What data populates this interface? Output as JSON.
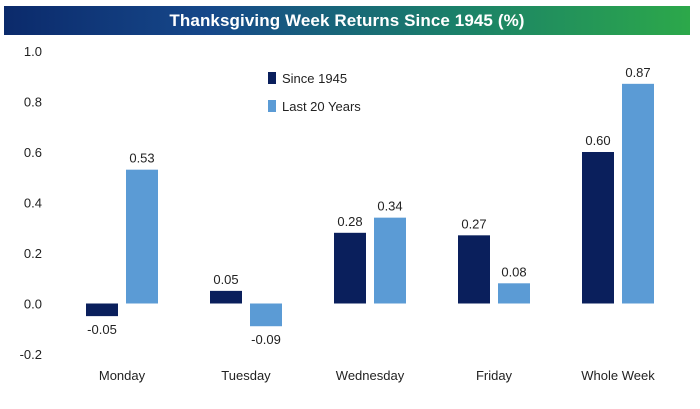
{
  "chart_data": {
    "type": "bar",
    "title": "Thanksgiving Week Returns Since 1945 (%)",
    "categories": [
      "Monday",
      "Tuesday",
      "Wednesday",
      "Friday",
      "Whole Week"
    ],
    "series": [
      {
        "name": "Since 1945",
        "values": [
          -0.05,
          0.05,
          0.28,
          0.27,
          0.6
        ],
        "labels": [
          "-0.05",
          "0.05",
          "0.28",
          "0.27",
          "0.60"
        ],
        "color": "#0a1f5c"
      },
      {
        "name": "Last 20 Years",
        "values": [
          0.53,
          -0.09,
          0.34,
          0.08,
          0.87
        ],
        "labels": [
          "0.53",
          "-0.09",
          "0.34",
          "0.08",
          "0.87"
        ],
        "color": "#5b9bd5"
      }
    ],
    "yticks": [
      "1.0",
      "0.8",
      "0.6",
      "0.4",
      "0.2",
      "0.0",
      "-0.2"
    ],
    "ylim": [
      -0.2,
      1.0
    ],
    "xlabel": "",
    "ylabel": "",
    "legend_position": "top-center"
  }
}
